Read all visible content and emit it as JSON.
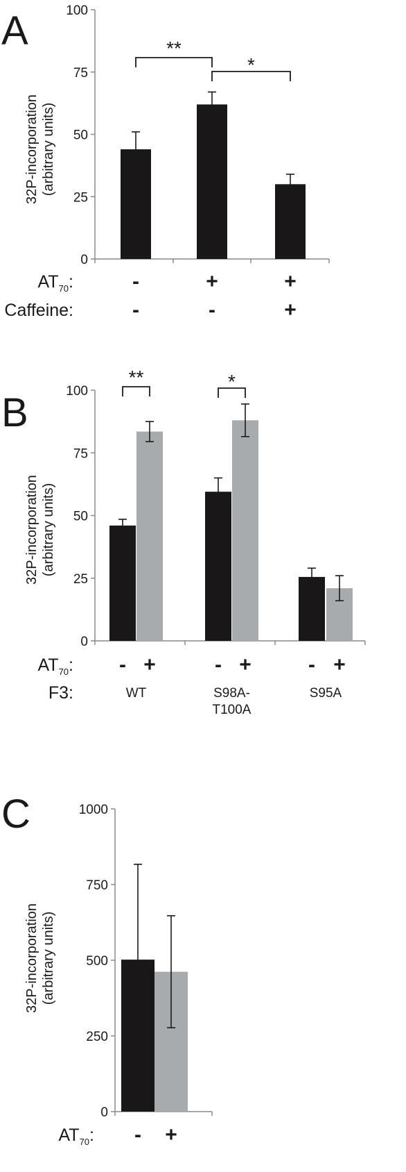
{
  "colors": {
    "dark": "#1a1718",
    "light": "#a8abad",
    "axis": "#8a8a8a",
    "text": "#1a1a1a"
  },
  "chart_data": [
    {
      "panel": "A",
      "type": "bar",
      "ylabel_line1": "32P-incorporation",
      "ylabel_line2": "(arbitrary units)",
      "ylim": [
        0,
        100
      ],
      "yticks": [
        "0",
        "25",
        "50",
        "75",
        "100"
      ],
      "bars": [
        {
          "value": 44,
          "err": 7,
          "color": "dark"
        },
        {
          "value": 62,
          "err": 5,
          "color": "dark"
        },
        {
          "value": 30,
          "err": 4,
          "color": "dark"
        }
      ],
      "rows": [
        {
          "label": "AT70:",
          "signs": [
            "-",
            "+",
            "+"
          ]
        },
        {
          "label": "Caffeine:",
          "signs": [
            "-",
            "-",
            "+"
          ]
        }
      ],
      "significance": [
        {
          "from": 0,
          "to": 1,
          "label": "**"
        },
        {
          "from": 1,
          "to": 2,
          "label": "*"
        }
      ]
    },
    {
      "panel": "B",
      "type": "bar",
      "ylabel_line1": "32P-incorporation",
      "ylabel_line2": "(arbitrary units)",
      "ylim": [
        0,
        100
      ],
      "yticks": [
        "0",
        "25",
        "50",
        "75",
        "100"
      ],
      "bars": [
        {
          "value": 46,
          "err": 2.5,
          "color": "dark"
        },
        {
          "value": 83.5,
          "err": 4,
          "color": "light"
        },
        {
          "value": 59.5,
          "err": 5.5,
          "color": "dark"
        },
        {
          "value": 88,
          "err": 6.5,
          "color": "light"
        },
        {
          "value": 25.5,
          "err": 3.5,
          "color": "dark"
        },
        {
          "value": 21,
          "err": 5,
          "color": "light"
        }
      ],
      "row_at70": {
        "label": "AT70:",
        "signs": [
          "-",
          "+",
          "-",
          "+",
          "-",
          "+"
        ]
      },
      "row_f3": {
        "label": "F3:",
        "groups": [
          "WT",
          "S98A-",
          "S95A"
        ],
        "group2_line2": "T100A"
      },
      "significance": [
        {
          "from": 0,
          "to": 1,
          "label": "**"
        },
        {
          "from": 2,
          "to": 3,
          "label": "*"
        }
      ]
    },
    {
      "panel": "C",
      "type": "bar",
      "ylabel_line1": "32P-incorporation",
      "ylabel_line2": "(arbitrary units)",
      "ylim": [
        0,
        1000
      ],
      "yticks": [
        "0",
        "250",
        "500",
        "750",
        "1000"
      ],
      "bars": [
        {
          "value": 502,
          "err": 315,
          "color": "dark"
        },
        {
          "value": 462,
          "err": 185,
          "color": "light"
        }
      ],
      "rows": [
        {
          "label": "AT70:",
          "signs": [
            "-",
            "+"
          ]
        }
      ]
    }
  ]
}
